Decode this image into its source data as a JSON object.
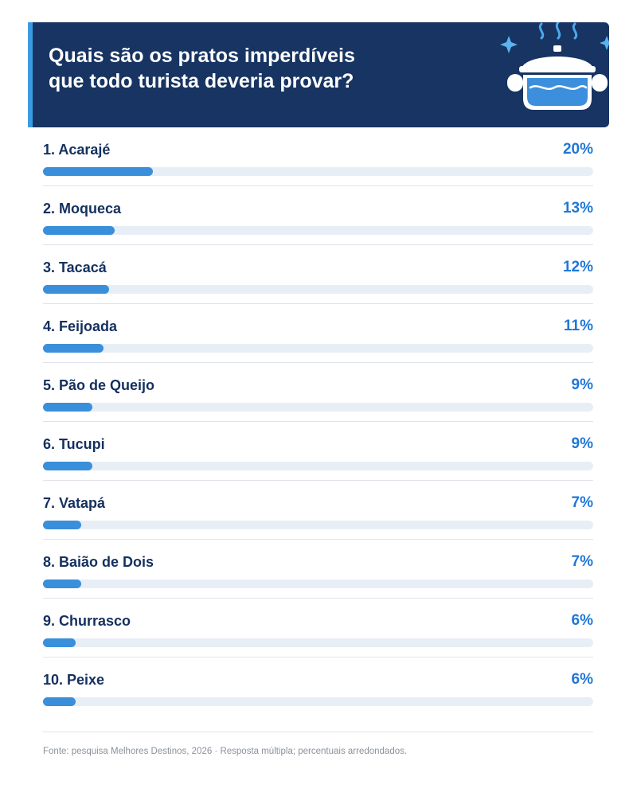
{
  "header": {
    "title_line1": "Quais são os pratos imperdíveis",
    "title_line2": "que todo turista deveria provar?"
  },
  "colors": {
    "header_bg": "#173462",
    "accent": "#3b9be2",
    "bar_fill": "#3a8fda",
    "bar_track": "#e8eef5",
    "label": "#14305f",
    "percent": "#1f77d8"
  },
  "icons": [
    "cooking-pot-icon",
    "sparkle-icon",
    "steam-icon"
  ],
  "chart_data": {
    "type": "bar",
    "orientation": "horizontal",
    "categories": [
      "1. Acarajé",
      "2. Moqueca",
      "3. Tacacá",
      "4. Feijoada",
      "5. Pão de Queijo",
      "6. Tucupi",
      "7. Vatapá",
      "8. Baião de Dois",
      "9. Churrasco",
      "10. Peixe"
    ],
    "values": [
      20,
      13,
      12,
      11,
      9,
      9,
      7,
      7,
      6,
      6
    ],
    "value_labels": [
      "20%",
      "13%",
      "12%",
      "11%",
      "9%",
      "9%",
      "7%",
      "7%",
      "6%",
      "6%"
    ],
    "unit": "%",
    "xlim": [
      0,
      100
    ],
    "grid": false
  },
  "footer": {
    "source": "Fonte: pesquisa Melhores Destinos, 2026 · Resposta múltipla; percentuais arredondados."
  }
}
